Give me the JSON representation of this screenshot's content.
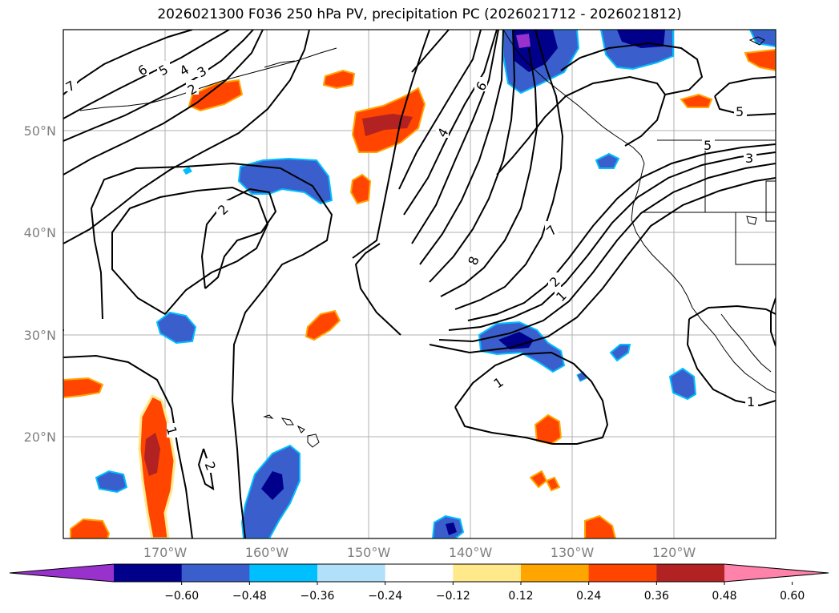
{
  "title": "2026021300 F036 250 hPa PV, precipitation PC (2026021712 - 2026021812)",
  "colors": {
    "pos_fill_main": "#ff4500",
    "pos_fill_strong": "#b22222",
    "pos_edge": "#ffa500",
    "neg_fill_main": "#3a5fcd",
    "neg_fill_strong": "#00008b",
    "neg_edge": "#00bfff",
    "grid": "#b0b0b0",
    "coast": "#000000"
  },
  "map": {
    "lat_labels": [
      "50°N",
      "40°N",
      "30°N",
      "20°N"
    ],
    "lon_labels": [
      "170°W",
      "160°W",
      "150°W",
      "140°W",
      "130°W",
      "120°W"
    ],
    "contour_labels": [
      "7",
      "6",
      "5",
      "4",
      "3",
      "2",
      "6",
      "4",
      "2",
      "8",
      "7",
      "2",
      "1",
      "5",
      "5",
      "3",
      "1",
      "1",
      "1",
      "2"
    ]
  },
  "colorbar": {
    "colors": [
      "#9932cc",
      "#00008b",
      "#3a5fcd",
      "#00bfff",
      "#b0e0fa",
      "#ffffff",
      "#ffe98a",
      "#ffa500",
      "#ff4500",
      "#b22222",
      "#ff82ab"
    ],
    "ticks": [
      "−0.60",
      "−0.48",
      "−0.36",
      "−0.24",
      "−0.12",
      "0.12",
      "0.24",
      "0.36",
      "0.48",
      "0.60"
    ]
  }
}
